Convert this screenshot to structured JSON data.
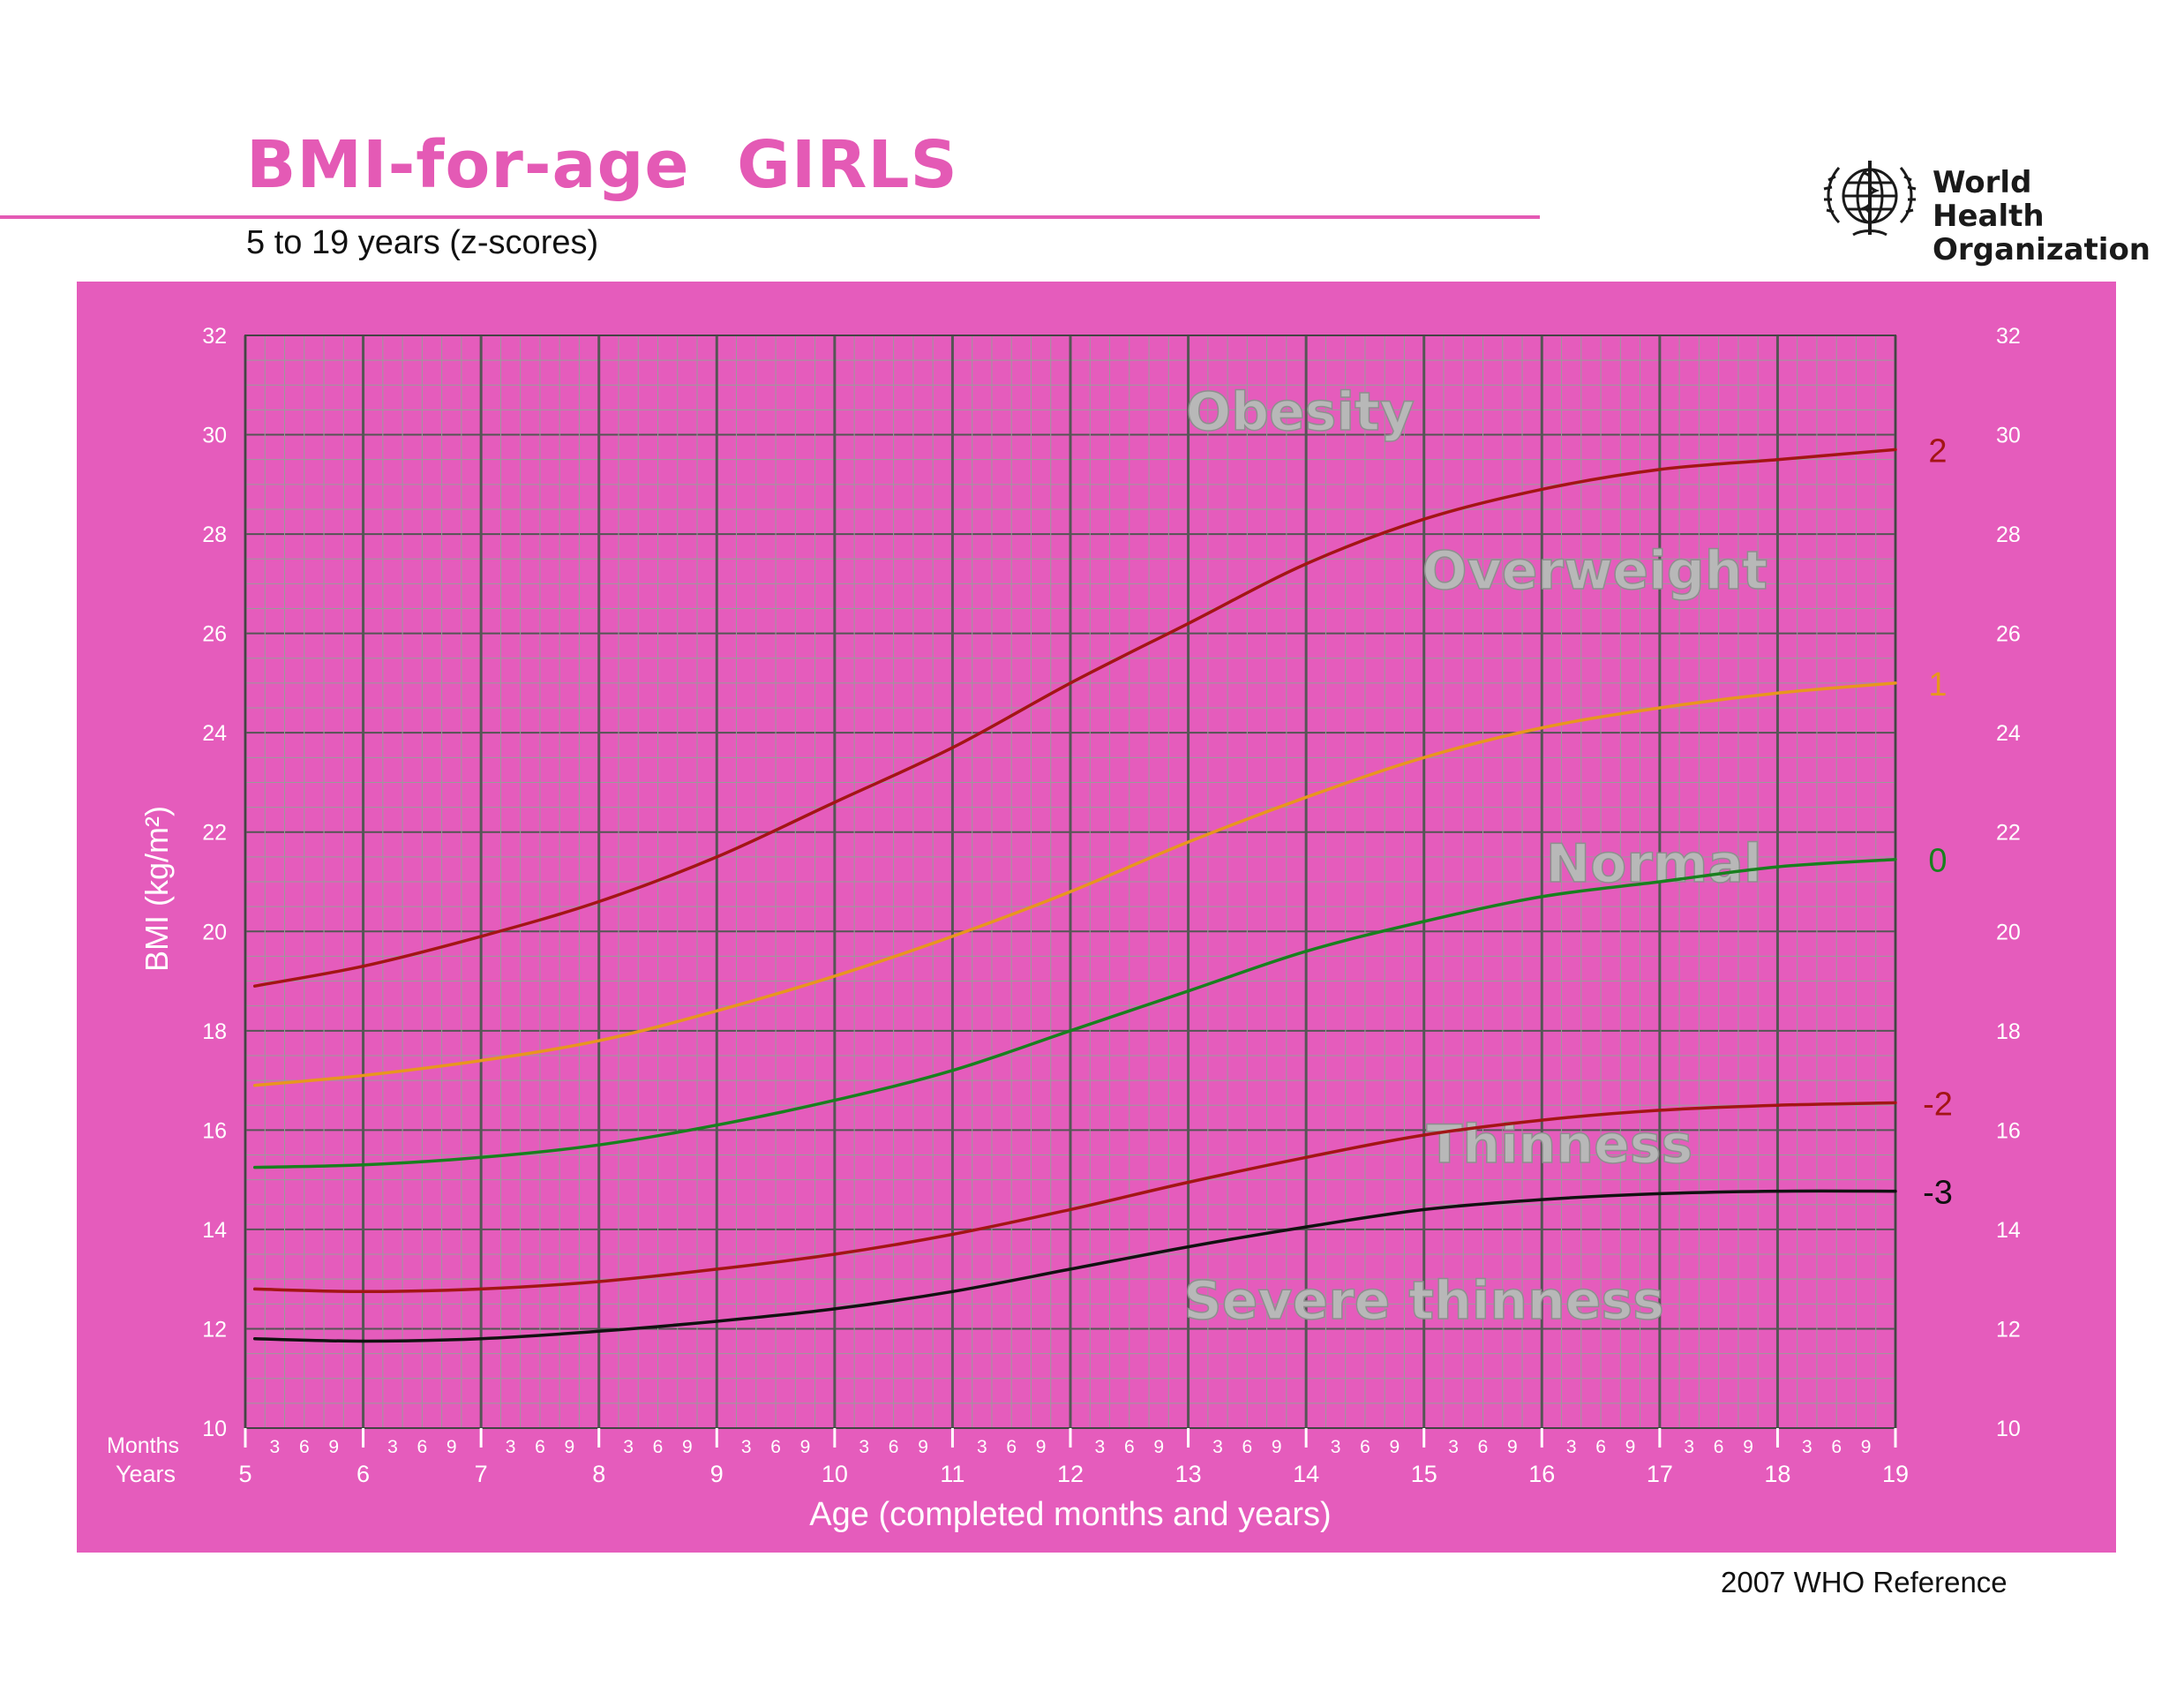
{
  "header": {
    "title": "BMI-for-age  GIRLS",
    "subtitle": "5 to 19 years (z-scores)",
    "org_name_line1": "World Health",
    "org_name_line2": "Organization",
    "logo_icon": "who-emblem-icon"
  },
  "footer": {
    "reference": "2007 WHO Reference"
  },
  "colors": {
    "brand_pink": "#e45ab5",
    "frame_pink": "#e55cbc",
    "z2": "#a31515",
    "z1": "#e8961e",
    "z0": "#18801e",
    "zm2": "#a31515",
    "zm3": "#111111",
    "grid_minor": "#9a9a9a",
    "grid_major": "#555555",
    "band_label": "#b8b8b8"
  },
  "chart_data": {
    "type": "line",
    "xlabel": "Age (completed months and years)",
    "ylabel": "BMI (kg/m²)",
    "months_label": "Months",
    "years_label": "Years",
    "xlim": [
      5,
      19
    ],
    "ylim": [
      10,
      32
    ],
    "x_major_ticks": [
      "5",
      "6",
      "7",
      "8",
      "9",
      "10",
      "11",
      "12",
      "13",
      "14",
      "15",
      "16",
      "17",
      "18",
      "19"
    ],
    "x_month_ticks": [
      "3",
      "6",
      "9"
    ],
    "y_ticks": [
      "10",
      "12",
      "14",
      "16",
      "18",
      "20",
      "22",
      "24",
      "26",
      "28",
      "30",
      "32"
    ],
    "grid": true,
    "band_labels": [
      {
        "text": "Obesity",
        "x": 13.95,
        "y": 30.1
      },
      {
        "text": "Overweight",
        "x": 16.45,
        "y": 26.9
      },
      {
        "text": "Normal",
        "x": 16.95,
        "y": 21.0
      },
      {
        "text": "Thinness",
        "x": 16.15,
        "y": 15.35
      },
      {
        "text": "Severe thinness",
        "x": 15.0,
        "y": 12.2
      }
    ],
    "x": [
      5,
      6,
      7,
      8,
      9,
      10,
      11,
      12,
      13,
      14,
      15,
      16,
      17,
      18,
      19
    ],
    "series": [
      {
        "name": "2",
        "color_key": "z2",
        "values": [
          18.9,
          19.3,
          19.9,
          20.6,
          21.5,
          22.6,
          23.7,
          25.0,
          26.2,
          27.4,
          28.3,
          28.9,
          29.3,
          29.5,
          29.7
        ]
      },
      {
        "name": "1",
        "color_key": "z1",
        "values": [
          16.9,
          17.1,
          17.4,
          17.8,
          18.4,
          19.1,
          19.9,
          20.8,
          21.8,
          22.7,
          23.5,
          24.1,
          24.5,
          24.8,
          25.0
        ]
      },
      {
        "name": "0",
        "color_key": "z0",
        "values": [
          15.25,
          15.3,
          15.45,
          15.7,
          16.1,
          16.6,
          17.2,
          18.0,
          18.8,
          19.6,
          20.2,
          20.7,
          21.0,
          21.3,
          21.45
        ]
      },
      {
        "name": "-2",
        "color_key": "zm2",
        "values": [
          12.8,
          12.75,
          12.8,
          12.95,
          13.2,
          13.5,
          13.9,
          14.4,
          14.95,
          15.45,
          15.9,
          16.2,
          16.4,
          16.5,
          16.55
        ]
      },
      {
        "name": "-3",
        "color_key": "zm3",
        "values": [
          11.8,
          11.75,
          11.8,
          11.95,
          12.15,
          12.4,
          12.75,
          13.2,
          13.65,
          14.05,
          14.4,
          14.6,
          14.72,
          14.77,
          14.77
        ]
      }
    ]
  }
}
